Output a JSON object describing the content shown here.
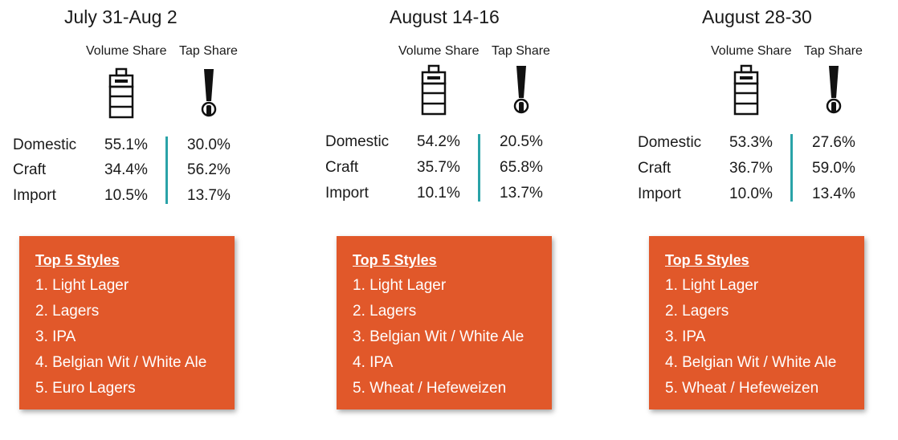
{
  "headers": {
    "volume_share": "Volume Share",
    "tap_share": "Tap Share"
  },
  "styles_title": "Top 5 Styles",
  "colors": {
    "box": "#e1582a",
    "divider": "#2aa3a8"
  },
  "icons": {
    "volume": "beer-keg-icon",
    "tap": "beer-tap-handle-icon"
  },
  "periods": [
    {
      "title": "July 31-Aug 2",
      "rows": [
        {
          "label": "Domestic",
          "volume": "55.1%",
          "tap": "30.0%"
        },
        {
          "label": "Craft",
          "volume": "34.4%",
          "tap": "56.2%"
        },
        {
          "label": "Import",
          "volume": "10.5%",
          "tap": "13.7%"
        }
      ],
      "styles": [
        "1. Light Lager",
        "2. Lagers",
        "3. IPA",
        "4. Belgian Wit / White Ale",
        "5. Euro Lagers"
      ]
    },
    {
      "title": "August 14-16",
      "rows": [
        {
          "label": "Domestic",
          "volume": "54.2%",
          "tap": "20.5%"
        },
        {
          "label": "Craft",
          "volume": "35.7%",
          "tap": "65.8%"
        },
        {
          "label": "Import",
          "volume": "10.1%",
          "tap": "13.7%"
        }
      ],
      "styles": [
        "1. Light Lager",
        "2. Lagers",
        "3. Belgian Wit / White Ale",
        "4. IPA",
        "5. Wheat / Hefeweizen"
      ]
    },
    {
      "title": "August 28-30",
      "rows": [
        {
          "label": "Domestic",
          "volume": "53.3%",
          "tap": "27.6%"
        },
        {
          "label": "Craft",
          "volume": "36.7%",
          "tap": "59.0%"
        },
        {
          "label": "Import",
          "volume": "10.0%",
          "tap": "13.4%"
        }
      ],
      "styles": [
        "1. Light Lager",
        "2. Lagers",
        "3. IPA",
        "4. Belgian Wit / White Ale",
        "5. Wheat / Hefeweizen"
      ]
    }
  ]
}
